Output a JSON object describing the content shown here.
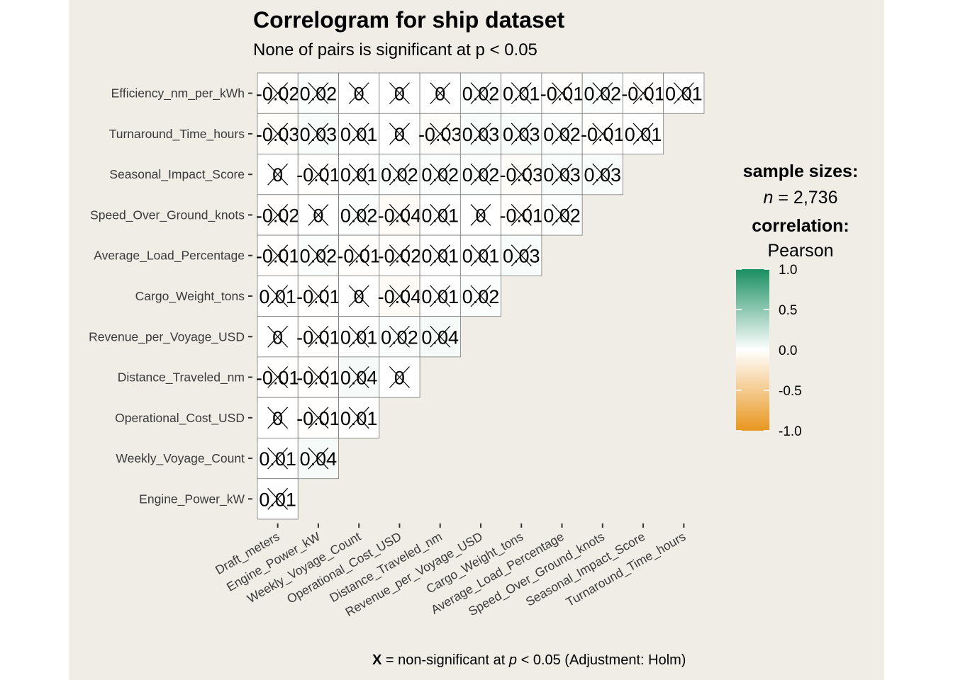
{
  "chart_data": {
    "type": "heatmap",
    "title": "Correlogram for ship dataset",
    "subtitle": "None of pairs is significant at p < 0.05",
    "x_categories": [
      "Draft_meters",
      "Engine_Power_kW",
      "Weekly_Voyage_Count",
      "Operational_Cost_USD",
      "Distance_Traveled_nm",
      "Revenue_per_Voyage_USD",
      "Cargo_Weight_tons",
      "Average_Load_Percentage",
      "Speed_Over_Ground_knots",
      "Seasonal_Impact_Score",
      "Turnaround_Time_hours"
    ],
    "y_categories": [
      "Efficiency_nm_per_kWh",
      "Turnaround_Time_hours",
      "Seasonal_Impact_Score",
      "Speed_Over_Ground_knots",
      "Average_Load_Percentage",
      "Cargo_Weight_tons",
      "Revenue_per_Voyage_USD",
      "Distance_Traveled_nm",
      "Operational_Cost_USD",
      "Weekly_Voyage_Count",
      "Engine_Power_kW"
    ],
    "values": [
      [
        -0.02,
        0.02,
        0,
        0,
        0,
        0.02,
        0.01,
        -0.01,
        0.02,
        -0.01,
        0.01
      ],
      [
        -0.03,
        0.03,
        0.01,
        0,
        -0.03,
        0.03,
        0.03,
        0.02,
        -0.01,
        0.01
      ],
      [
        0,
        -0.01,
        0.01,
        0.02,
        0.02,
        0.02,
        -0.03,
        0.03,
        0.03
      ],
      [
        -0.02,
        0,
        0.02,
        -0.04,
        0.01,
        0,
        -0.01,
        0.02
      ],
      [
        -0.01,
        0.02,
        -0.01,
        -0.02,
        0.01,
        0.01,
        0.03
      ],
      [
        0.01,
        -0.01,
        0,
        -0.04,
        0.01,
        0.02
      ],
      [
        0,
        -0.01,
        0.01,
        0.02,
        0.04
      ],
      [
        -0.01,
        -0.01,
        0.04,
        0
      ],
      [
        0,
        -0.01,
        0.01
      ],
      [
        0.01,
        0.04
      ],
      [
        0.01
      ]
    ],
    "cell_labels": [
      [
        "-0.02",
        "0.02",
        "0",
        "0",
        "0",
        "0.02",
        "0.01",
        "-0.01",
        "0.02",
        "-0.01",
        "0.01"
      ],
      [
        "-0.03",
        "0.03",
        "0.01",
        "0",
        "-0.03",
        "0.03",
        "0.03",
        "0.02",
        "-0.01",
        "0.01"
      ],
      [
        "0",
        "-0.01",
        "0.01",
        "0.02",
        "0.02",
        "0.02",
        "-0.03",
        "0.03",
        "0.03"
      ],
      [
        "-0.02",
        "0",
        "0.02",
        "-0.04",
        "0.01",
        "0",
        "-0.01",
        "0.02"
      ],
      [
        "-0.01",
        "0.02",
        "-0.01",
        "-0.02",
        "0.01",
        "0.01",
        "0.03"
      ],
      [
        "0.01",
        "-0.01",
        "0",
        "-0.04",
        "0.01",
        "0.02"
      ],
      [
        "0",
        "-0.01",
        "0.01",
        "0.02",
        "0.04"
      ],
      [
        "-0.01",
        "-0.01",
        "0.04",
        "0"
      ],
      [
        "0",
        "-0.01",
        "0.01"
      ],
      [
        "0.01",
        "0.04"
      ],
      [
        "0.01"
      ]
    ],
    "all_non_significant": true,
    "color_scale": {
      "low": "#e8961e",
      "mid": "#ffffff",
      "high": "#1a8f63",
      "range": [
        -1.0,
        1.0
      ],
      "ticks": [
        "1.0",
        "0.5",
        "0.0",
        "-0.5",
        "-1.0"
      ],
      "tick_values": [
        1.0,
        0.5,
        0.0,
        -0.5,
        -1.0
      ]
    },
    "legend": {
      "position": "right",
      "heading_sample": "sample sizes:",
      "n_symbol": "n",
      "n_rest": " = 2,736",
      "heading_corr": "correlation:",
      "method": "Pearson"
    },
    "caption": {
      "x_symbol": "X",
      "text1": " = non-significant at ",
      "p_symbol": "p",
      "text2": " < 0.05 (Adjustment: Holm)"
    }
  },
  "colors": {
    "background": "#f0ede6",
    "cell_border": "#7a7a7a",
    "text": "#000000",
    "axis_text": "#3a3a3a"
  }
}
